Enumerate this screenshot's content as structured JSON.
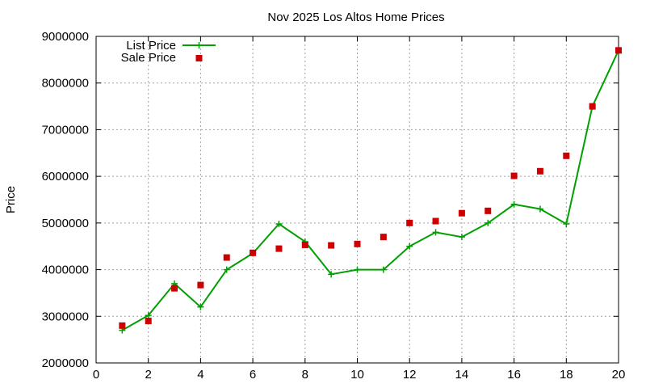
{
  "chart_data": {
    "type": "line",
    "title": "Nov 2025 Los Altos Home Prices",
    "xlabel": "",
    "ylabel": "Price",
    "xlim": [
      0,
      20
    ],
    "ylim": [
      2000000,
      9000000
    ],
    "x_ticks": [
      0,
      2,
      4,
      6,
      8,
      10,
      12,
      14,
      16,
      18,
      20
    ],
    "y_ticks": [
      2000000,
      3000000,
      4000000,
      5000000,
      6000000,
      7000000,
      8000000,
      9000000
    ],
    "grid": true,
    "legend_position": "top-left",
    "series": [
      {
        "name": "List Price",
        "style": "line-with-plus-markers",
        "color": "#00a000",
        "x": [
          1,
          2,
          3,
          4,
          5,
          6,
          7,
          8,
          9,
          10,
          11,
          12,
          13,
          14,
          15,
          16,
          17,
          18,
          19,
          20
        ],
        "values": [
          2700000,
          3020000,
          3700000,
          3200000,
          4000000,
          4350000,
          4980000,
          4600000,
          3900000,
          4000000,
          4000000,
          4500000,
          4800000,
          4700000,
          5000000,
          5400000,
          5300000,
          4980000,
          7500000,
          8700000
        ]
      },
      {
        "name": "Sale Price",
        "style": "square-markers",
        "color": "#cc0000",
        "x": [
          1,
          2,
          3,
          4,
          5,
          6,
          7,
          8,
          9,
          10,
          11,
          12,
          13,
          14,
          15,
          16,
          17,
          18,
          19,
          20
        ],
        "values": [
          2800000,
          2900000,
          3600000,
          3670000,
          4260000,
          4360000,
          4450000,
          4530000,
          4520000,
          4550000,
          4700000,
          5000000,
          5040000,
          5210000,
          5260000,
          6010000,
          6110000,
          6440000,
          7500000,
          8700000
        ]
      }
    ]
  }
}
